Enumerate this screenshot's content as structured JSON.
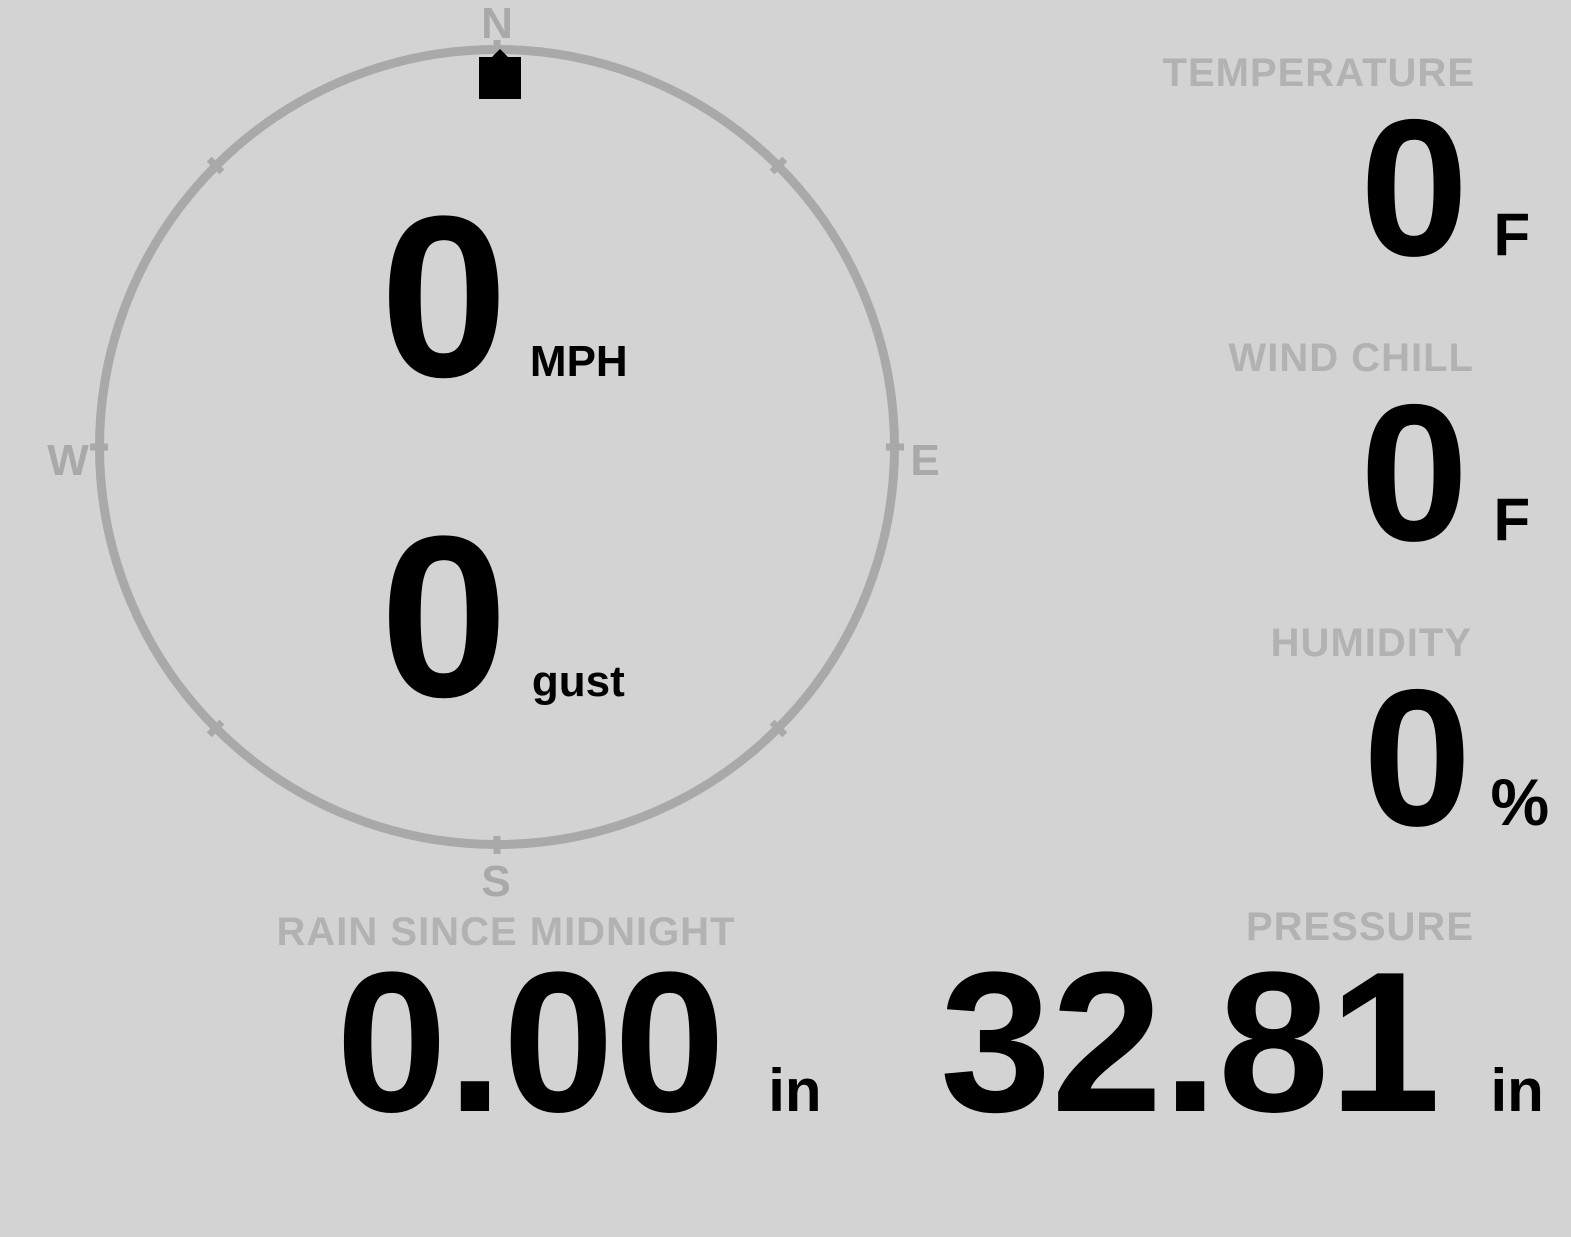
{
  "display": {
    "background_color": "#d3d3d3",
    "dial_color": "#a9a9a9",
    "label_color": "#b2b2b2",
    "value_color": "#000000"
  },
  "compass": {
    "north_label": "N",
    "east_label": "E",
    "south_label": "S",
    "west_label": "W",
    "tick_angles_deg": [
      0,
      45,
      90,
      135,
      180,
      225,
      270,
      315
    ],
    "wind_direction": "N",
    "speed": {
      "value": "0",
      "unit": "MPH"
    },
    "gust": {
      "value": "0",
      "unit": "gust"
    }
  },
  "metrics": {
    "temperature": {
      "label": "TEMPERATURE",
      "value": "0",
      "unit": "F"
    },
    "wind_chill": {
      "label": "WIND CHILL",
      "value": "0",
      "unit": "F"
    },
    "humidity": {
      "label": "HUMIDITY",
      "value": "0",
      "unit": "%"
    },
    "rain_since_midnight": {
      "label": "RAIN SINCE MIDNIGHT",
      "value": "0.00",
      "unit": "in"
    },
    "pressure": {
      "label": "PRESSURE",
      "value": "32.81",
      "unit": "in"
    }
  }
}
